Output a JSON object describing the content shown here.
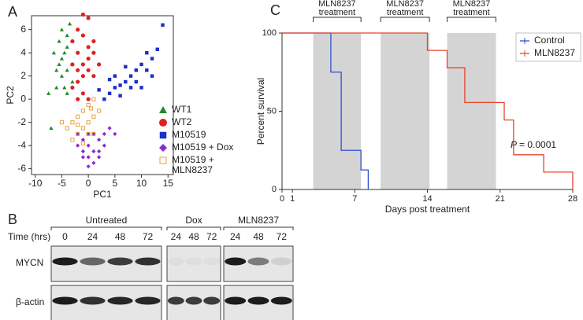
{
  "panels": [
    "A",
    "B",
    "C"
  ],
  "chart_data": [
    {
      "type": "scatter",
      "xlabel": "PC1",
      "ylabel": "PC2",
      "xlim": [
        -10.7,
        16
      ],
      "ylim": [
        -6.5,
        7.2
      ],
      "xticks": [
        -10,
        -5,
        0,
        5,
        10,
        15
      ],
      "yticks": [
        -6,
        -4,
        -2,
        0,
        2,
        4,
        6
      ],
      "series": [
        {
          "name": "WT1",
          "color": "#1e8a2a",
          "marker": "triangle",
          "x": [
            -7,
            -7.5,
            -6,
            -5,
            -5.5,
            -4.5,
            -4,
            -3.5,
            -3,
            -5,
            -4,
            -6,
            -4.5,
            -3,
            -5,
            -4,
            -6.5,
            -3,
            -5.5,
            -4
          ],
          "values": [
            -2.5,
            0.5,
            1,
            2,
            3,
            4,
            5.5,
            6.5,
            5,
            3.5,
            2.5,
            2.5,
            1,
            3,
            6,
            4.5,
            4,
            1.5,
            5,
            0.5
          ]
        },
        {
          "name": "WT2",
          "color": "#e02020",
          "marker": "circle",
          "x": [
            -1,
            0,
            -2,
            -1,
            0,
            1,
            -2,
            -3,
            -1,
            0,
            1,
            -2,
            -3,
            -1,
            0,
            -2,
            1,
            0,
            -1,
            2,
            -3,
            -2
          ],
          "values": [
            7.3,
            7,
            6,
            5.5,
            4.5,
            4,
            4,
            3,
            3,
            2.5,
            2,
            1.5,
            1,
            0.5,
            0,
            0,
            5,
            3.5,
            2,
            3,
            5,
            2.5
          ]
        },
        {
          "name": "M10519",
          "color": "#1a2fc4",
          "marker": "square",
          "x": [
            14,
            13,
            12,
            11,
            10,
            9,
            8,
            7,
            6,
            5,
            4,
            3,
            2,
            5,
            7,
            8,
            9,
            10,
            11,
            6,
            12,
            4
          ],
          "values": [
            6.4,
            4.3,
            3.5,
            4,
            3,
            2.5,
            2,
            1.5,
            1.2,
            1,
            0.5,
            0,
            0.8,
            2,
            2.8,
            1,
            1.5,
            1,
            2.5,
            0.3,
            2,
            1.7
          ]
        },
        {
          "name": "M10519 + Dox",
          "color": "#8a2ad0",
          "marker": "diamond",
          "x": [
            0,
            -1,
            1,
            2,
            0,
            -1,
            1,
            3,
            4,
            -2,
            2,
            0,
            1,
            -1,
            3,
            2,
            0,
            5,
            -2
          ],
          "values": [
            -5.8,
            -5,
            -5.5,
            -4.5,
            -4,
            -3.5,
            -3,
            -3,
            -2.5,
            -4,
            -3.5,
            -3,
            -4.5,
            -4.5,
            -4,
            -5,
            -5,
            -3,
            -3
          ]
        },
        {
          "name": "M10519 + MLN8237",
          "color": "#e8a040",
          "marker": "open-square",
          "x": [
            1,
            0,
            -1,
            -2,
            -3,
            -4,
            -2,
            -1,
            0,
            1,
            -3,
            -1,
            0,
            -5,
            2,
            -2,
            1,
            0.5
          ],
          "values": [
            0,
            -0.5,
            -1,
            -1.5,
            -2,
            -2.5,
            -3,
            -2.5,
            -2,
            -1.5,
            -3.5,
            -3.8,
            -3,
            -2,
            -1,
            -2.2,
            -3,
            -0.8
          ]
        }
      ]
    },
    {
      "type": "step",
      "xlabel": "Days post treatment",
      "ylabel": "Percent survival",
      "xlim": [
        0,
        28
      ],
      "ylim": [
        0,
        100
      ],
      "xticks": [
        0,
        1,
        7,
        14,
        21,
        28
      ],
      "yticks": [
        0,
        50,
        100
      ],
      "shaded": [
        [
          3,
          7.6
        ],
        [
          9.5,
          14.2
        ],
        [
          15.9,
          20.6
        ]
      ],
      "annotations": [
        "MLN8237 treatment",
        "MLN8237 treatment",
        "MLN8237 treatment"
      ],
      "p_label": "P",
      "p_text": "= 0.0001",
      "series": [
        {
          "name": "Control",
          "color": "#3050d0",
          "x": [
            0,
            4.7,
            5.7,
            7.6,
            8.3
          ],
          "values": [
            100,
            75,
            25,
            12.5,
            0
          ]
        },
        {
          "name": "MLN8237",
          "color": "#e8442a",
          "x": [
            0,
            14,
            15.9,
            17.6,
            21.4,
            22.3,
            25.2,
            28
          ],
          "values": [
            100,
            88.9,
            77.8,
            55.6,
            44.4,
            22.2,
            11.1,
            0
          ]
        }
      ]
    }
  ],
  "blot": {
    "time_label": "Time (hrs)",
    "groups": [
      {
        "name": "Untreated",
        "times": [
          "0",
          "24",
          "48",
          "72"
        ]
      },
      {
        "name": "Dox",
        "times": [
          "24",
          "48",
          "72"
        ]
      },
      {
        "name": "MLN8237",
        "times": [
          "24",
          "48",
          "72"
        ]
      }
    ],
    "rows": [
      {
        "label": "MYCN",
        "intensity": [
          [
            0.95,
            0.6,
            0.8,
            0.85
          ],
          [
            0.04,
            0.04,
            0.04
          ],
          [
            0.95,
            0.5,
            0.1
          ]
        ]
      },
      {
        "label": "β-actin",
        "intensity": [
          [
            0.95,
            0.85,
            0.9,
            0.9
          ],
          [
            0.8,
            0.8,
            0.8
          ],
          [
            0.95,
            0.95,
            0.95
          ]
        ]
      }
    ]
  }
}
